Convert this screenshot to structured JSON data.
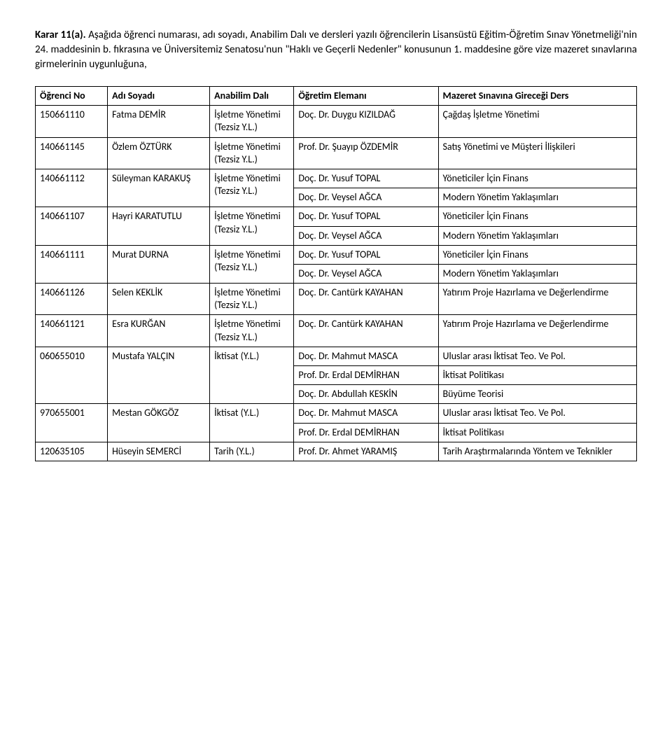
{
  "intro": {
    "heading": "Karar 11(a).",
    "text": "Aşağıda öğrenci numarası, adı soyadı, Anabilim Dalı ve dersleri yazılı öğrencilerin Lisansüstü Eğitim-Öğretim Sınav Yönetmeliği'nin 24. maddesinin b. fıkrasına ve Üniversitemiz Senatosu'nun \"Haklı ve Geçerli Nedenler\" konusunun 1. maddesine göre vize mazeret sınavlarına girmelerinin uygunluğuna,"
  },
  "headers": {
    "no": "Öğrenci No",
    "name": "Adı Soyadı",
    "dept": "Anabilim Dalı",
    "instructor": "Öğretim Elemanı",
    "course": "Mazeret Sınavına Gireceği Ders"
  },
  "dept_labels": {
    "isletme": "İşletme Yönetimi (Tezsiz Y.L.)",
    "iktisat": "İktisat (Y.L.)",
    "tarih": "Tarih (Y.L.)"
  },
  "rows": [
    {
      "no": "150661110",
      "name": "Fatma DEMİR",
      "dept": "isletme",
      "entries": [
        {
          "instr": "Doç. Dr. Duygu KIZILDAĞ",
          "course": "Çağdaş İşletme Yönetimi"
        }
      ]
    },
    {
      "no": "140661145",
      "name": "Özlem ÖZTÜRK",
      "dept": "isletme",
      "entries": [
        {
          "instr": "Prof. Dr. Şuayıp ÖZDEMİR",
          "course": "Satış Yönetimi ve Müşteri İlişkileri"
        }
      ]
    },
    {
      "no": "140661112",
      "name": "Süleyman KARAKUŞ",
      "dept": "isletme",
      "entries": [
        {
          "instr": "Doç. Dr. Yusuf TOPAL",
          "course": "Yöneticiler İçin Finans"
        },
        {
          "instr": "Doç. Dr. Veysel AĞCA",
          "course": "Modern Yönetim Yaklaşımları"
        }
      ]
    },
    {
      "no": "140661107",
      "name": "Hayri KARATUTLU",
      "dept": "isletme",
      "entries": [
        {
          "instr": "Doç. Dr. Yusuf TOPAL",
          "course": "Yöneticiler İçin Finans"
        },
        {
          "instr": "Doç. Dr. Veysel AĞCA",
          "course": "Modern Yönetim Yaklaşımları"
        }
      ]
    },
    {
      "no": "140661111",
      "name": "Murat DURNA",
      "dept": "isletme",
      "entries": [
        {
          "instr": "Doç. Dr. Yusuf TOPAL",
          "course": "Yöneticiler İçin Finans"
        },
        {
          "instr": "Doç. Dr. Veysel AĞCA",
          "course": "Modern Yönetim Yaklaşımları"
        }
      ]
    },
    {
      "no": "140661126",
      "name": "Selen KEKLİK",
      "dept": "isletme",
      "entries": [
        {
          "instr": "Doç. Dr. Cantürk KAYAHAN",
          "course": "Yatırım Proje Hazırlama ve Değerlendirme"
        }
      ]
    },
    {
      "no": "140661121",
      "name": "Esra KURĞAN",
      "dept": "isletme",
      "entries": [
        {
          "instr": "Doç. Dr. Cantürk KAYAHAN",
          "course": "Yatırım Proje Hazırlama ve Değerlendirme"
        }
      ]
    },
    {
      "no": "060655010",
      "name": "Mustafa YALÇIN",
      "dept": "iktisat",
      "entries": [
        {
          "instr": "Doç. Dr. Mahmut MASCA",
          "course": "Uluslar arası İktisat Teo. Ve Pol."
        },
        {
          "instr": "Prof. Dr. Erdal DEMİRHAN",
          "course": "İktisat Politikası"
        },
        {
          "instr": "Doç. Dr. Abdullah KESKİN",
          "course": "Büyüme Teorisi"
        }
      ]
    },
    {
      "no": "970655001",
      "name": "Mestan GÖKGÖZ",
      "dept": "iktisat",
      "entries": [
        {
          "instr": "Doç. Dr. Mahmut MASCA",
          "course": "Uluslar arası İktisat Teo. Ve Pol."
        },
        {
          "instr": "Prof. Dr. Erdal DEMİRHAN",
          "course": "İktisat Politikası"
        }
      ]
    },
    {
      "no": "120635105",
      "name": "Hüseyin SEMERCİ",
      "dept": "tarih",
      "entries": [
        {
          "instr": "Prof. Dr. Ahmet YARAMIŞ",
          "course": "Tarih Araştırmalarında Yöntem ve Teknikler"
        }
      ]
    }
  ]
}
